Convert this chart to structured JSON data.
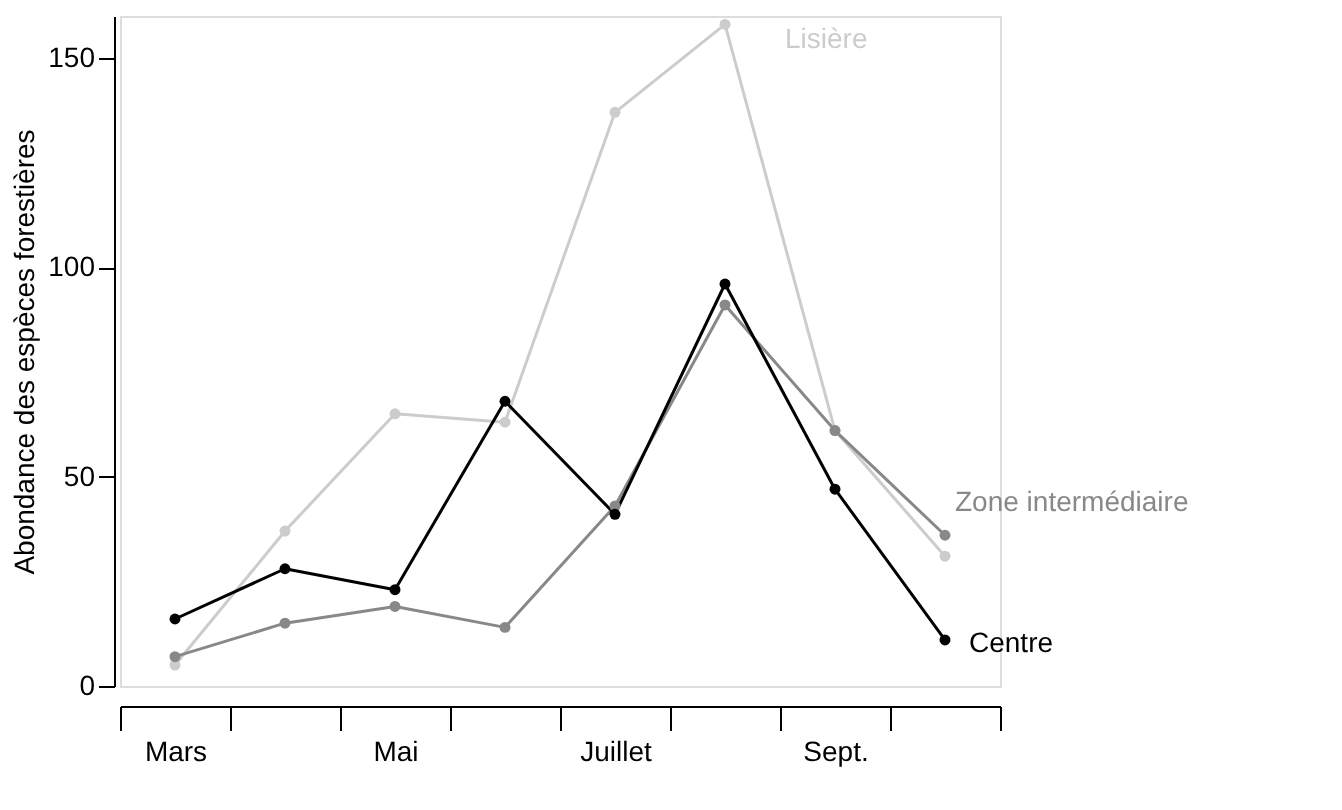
{
  "chart_data": {
    "type": "line",
    "ylabel": "Abondance des espèces forestières",
    "categories": [
      "Mars",
      null,
      "Mai",
      null,
      "Juillet",
      null,
      "Sept.",
      null
    ],
    "series": [
      {
        "name": "Lisière",
        "color": "#cccccc",
        "values": [
          5,
          37,
          65,
          63,
          137,
          158,
          61,
          31
        ]
      },
      {
        "name": "Zone intermédiaire",
        "color": "#888888",
        "values": [
          7,
          15,
          19,
          14,
          43,
          91,
          61,
          36
        ]
      },
      {
        "name": "Centre",
        "color": "#000000",
        "values": [
          16,
          28,
          23,
          68,
          41,
          96,
          47,
          11
        ]
      }
    ],
    "ylim": [
      0,
      160
    ],
    "yticks": [
      0,
      50,
      100,
      150
    ],
    "grid": false,
    "legend": false,
    "marker": "circle",
    "line_style": "solid"
  }
}
